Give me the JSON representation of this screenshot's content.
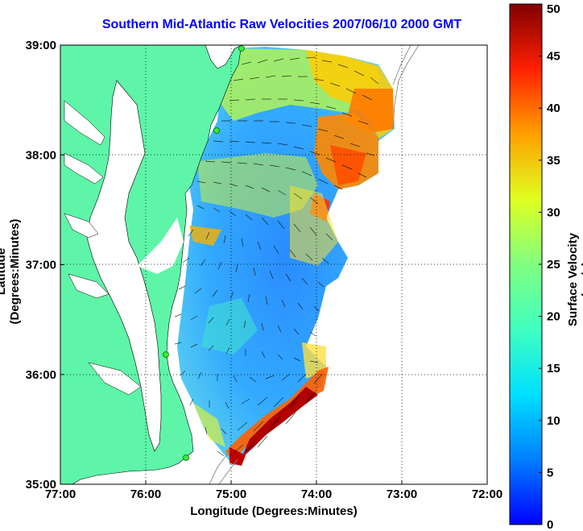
{
  "title": "Southern Mid-Atlantic Raw Velocities 2007/06/10 2000 GMT",
  "xlabel": "Longitude (Degrees:Minutes)",
  "ylabel": "Latitude (Degrees:Minutes)",
  "colorbar_label": "Surface Velocity (cm/s)",
  "map": {
    "lon_range": [
      -77,
      -72
    ],
    "lat_range": [
      35,
      39
    ],
    "x_ticks": [
      {
        "value": -77,
        "label": "77:00"
      },
      {
        "value": -76,
        "label": "76:00"
      },
      {
        "value": -75,
        "label": "75:00"
      },
      {
        "value": -74,
        "label": "74:00"
      },
      {
        "value": -73,
        "label": "73:00"
      },
      {
        "value": -72,
        "label": "72:00"
      }
    ],
    "y_ticks": [
      {
        "value": 39,
        "label": "39:00"
      },
      {
        "value": 38,
        "label": "38:00"
      },
      {
        "value": 37,
        "label": "37:00"
      },
      {
        "value": 36,
        "label": "36:00"
      },
      {
        "value": 35,
        "label": "35:00"
      }
    ],
    "grid": "dotted",
    "land_color": "#5ef5a8",
    "station_color": "#33ee33"
  },
  "colorbar": {
    "min": 0,
    "max": 50,
    "ticks": [
      "0",
      "5",
      "10",
      "15",
      "20",
      "25",
      "30",
      "35",
      "40",
      "45",
      "50"
    ],
    "colormap": "jet"
  }
}
